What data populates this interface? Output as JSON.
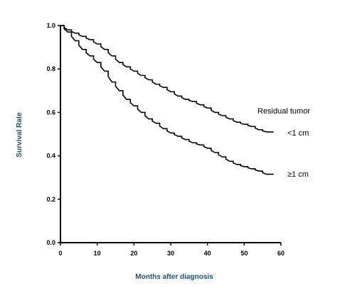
{
  "chart_data": {
    "type": "line",
    "xlabel": "Months after diagnosis",
    "ylabel": "Survival Rate",
    "xlim": [
      0,
      60
    ],
    "ylim": [
      0,
      1.0
    ],
    "x_ticks": [
      "0",
      "10",
      "20",
      "30",
      "40",
      "50",
      "60"
    ],
    "y_ticks": [
      "0.0",
      "0.2",
      "0.4",
      "0.6",
      "0.8",
      "1.0"
    ],
    "grid": false,
    "legend_title": "Residual tumor",
    "axis_label_color": "#1f4e79",
    "line_color": "#000000",
    "series": [
      {
        "name": "<1 cm",
        "x": [
          0,
          2,
          4,
          6,
          8,
          10,
          12,
          14,
          16,
          18,
          20,
          22,
          24,
          26,
          28,
          30,
          32,
          34,
          36,
          38,
          40,
          42,
          44,
          46,
          48,
          50,
          52,
          54,
          56,
          58
        ],
        "y": [
          1.0,
          0.98,
          0.965,
          0.95,
          0.935,
          0.915,
          0.89,
          0.86,
          0.83,
          0.81,
          0.79,
          0.77,
          0.75,
          0.73,
          0.715,
          0.695,
          0.675,
          0.66,
          0.65,
          0.635,
          0.62,
          0.6,
          0.585,
          0.57,
          0.555,
          0.545,
          0.535,
          0.52,
          0.51,
          0.51
        ]
      },
      {
        "name": "≥1 cm",
        "x": [
          0,
          2,
          4,
          6,
          8,
          10,
          12,
          14,
          16,
          18,
          20,
          22,
          24,
          26,
          28,
          30,
          32,
          34,
          36,
          38,
          40,
          42,
          44,
          46,
          48,
          50,
          52,
          54,
          56,
          58
        ],
        "y": [
          1.0,
          0.97,
          0.93,
          0.89,
          0.86,
          0.83,
          0.79,
          0.74,
          0.7,
          0.66,
          0.63,
          0.6,
          0.57,
          0.55,
          0.525,
          0.505,
          0.49,
          0.475,
          0.46,
          0.45,
          0.435,
          0.415,
          0.395,
          0.375,
          0.36,
          0.35,
          0.34,
          0.33,
          0.315,
          0.315
        ]
      }
    ]
  }
}
